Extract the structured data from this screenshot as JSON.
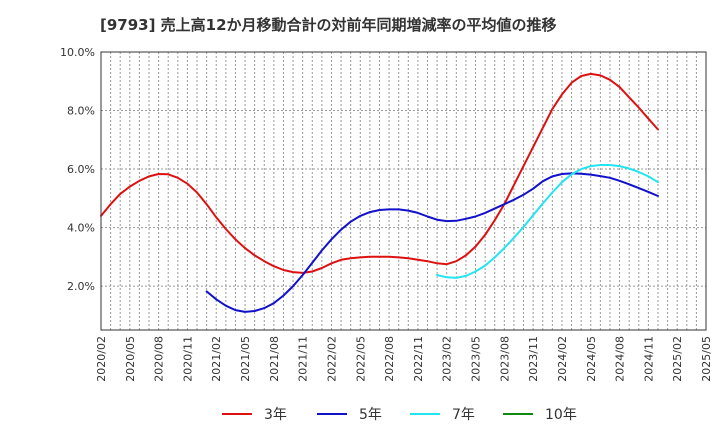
{
  "chart_data": {
    "type": "line",
    "title": "[9793]  売上高12か月移動合計の対前年同期増減率の平均値の推移",
    "xlabel": "",
    "ylabel": "",
    "x_ticks": [
      "2020/02",
      "2020/05",
      "2020/08",
      "2020/11",
      "2021/02",
      "2021/05",
      "2021/08",
      "2021/11",
      "2022/02",
      "2022/05",
      "2022/08",
      "2022/11",
      "2023/02",
      "2023/05",
      "2023/08",
      "2023/11",
      "2024/02",
      "2024/05",
      "2024/08",
      "2024/11",
      "2025/02",
      "2025/05"
    ],
    "y_ticks": [
      "2.0%",
      "4.0%",
      "6.0%",
      "8.0%",
      "10.0%"
    ],
    "y_tick_values": [
      2,
      4,
      6,
      8,
      10
    ],
    "ylim": [
      0.5,
      10
    ],
    "x_range": [
      "2020/02",
      "2025/05"
    ],
    "grid": true,
    "legend_position": "bottom",
    "series": [
      {
        "name": "3年",
        "color": "#dd1111",
        "points": [
          [
            "2020/02",
            4.4
          ],
          [
            "2020/03",
            4.8
          ],
          [
            "2020/04",
            5.15
          ],
          [
            "2020/05",
            5.4
          ],
          [
            "2020/06",
            5.6
          ],
          [
            "2020/07",
            5.75
          ],
          [
            "2020/08",
            5.83
          ],
          [
            "2020/09",
            5.82
          ],
          [
            "2020/10",
            5.7
          ],
          [
            "2020/11",
            5.5
          ],
          [
            "2020/12",
            5.2
          ],
          [
            "2021/01",
            4.8
          ],
          [
            "2021/02",
            4.35
          ],
          [
            "2021/03",
            3.95
          ],
          [
            "2021/04",
            3.6
          ],
          [
            "2021/05",
            3.3
          ],
          [
            "2021/06",
            3.05
          ],
          [
            "2021/07",
            2.85
          ],
          [
            "2021/08",
            2.68
          ],
          [
            "2021/09",
            2.55
          ],
          [
            "2021/10",
            2.48
          ],
          [
            "2021/11",
            2.45
          ],
          [
            "2021/12",
            2.5
          ],
          [
            "2022/01",
            2.62
          ],
          [
            "2022/02",
            2.78
          ],
          [
            "2022/03",
            2.9
          ],
          [
            "2022/04",
            2.95
          ],
          [
            "2022/05",
            2.98
          ],
          [
            "2022/06",
            3.0
          ],
          [
            "2022/07",
            3.0
          ],
          [
            "2022/08",
            3.0
          ],
          [
            "2022/09",
            2.98
          ],
          [
            "2022/10",
            2.95
          ],
          [
            "2022/11",
            2.9
          ],
          [
            "2022/12",
            2.85
          ],
          [
            "2023/01",
            2.78
          ],
          [
            "2023/02",
            2.75
          ],
          [
            "2023/03",
            2.85
          ],
          [
            "2023/04",
            3.05
          ],
          [
            "2023/05",
            3.35
          ],
          [
            "2023/06",
            3.75
          ],
          [
            "2023/07",
            4.25
          ],
          [
            "2023/08",
            4.8
          ],
          [
            "2023/09",
            5.45
          ],
          [
            "2023/10",
            6.1
          ],
          [
            "2023/11",
            6.75
          ],
          [
            "2023/12",
            7.4
          ],
          [
            "2024/01",
            8.05
          ],
          [
            "2024/02",
            8.55
          ],
          [
            "2024/03",
            8.95
          ],
          [
            "2024/04",
            9.18
          ],
          [
            "2024/05",
            9.25
          ],
          [
            "2024/06",
            9.2
          ],
          [
            "2024/07",
            9.05
          ],
          [
            "2024/08",
            8.8
          ],
          [
            "2024/09",
            8.45
          ],
          [
            "2024/10",
            8.1
          ],
          [
            "2024/11",
            7.72
          ],
          [
            "2024/12",
            7.35
          ]
        ]
      },
      {
        "name": "5年",
        "color": "#1111cc",
        "points": [
          [
            "2021/01",
            1.82
          ],
          [
            "2021/02",
            1.55
          ],
          [
            "2021/03",
            1.33
          ],
          [
            "2021/04",
            1.18
          ],
          [
            "2021/05",
            1.12
          ],
          [
            "2021/06",
            1.15
          ],
          [
            "2021/07",
            1.25
          ],
          [
            "2021/08",
            1.42
          ],
          [
            "2021/09",
            1.68
          ],
          [
            "2021/10",
            2.0
          ],
          [
            "2021/11",
            2.38
          ],
          [
            "2021/12",
            2.8
          ],
          [
            "2022/01",
            3.22
          ],
          [
            "2022/02",
            3.6
          ],
          [
            "2022/03",
            3.93
          ],
          [
            "2022/04",
            4.2
          ],
          [
            "2022/05",
            4.4
          ],
          [
            "2022/06",
            4.53
          ],
          [
            "2022/07",
            4.6
          ],
          [
            "2022/08",
            4.62
          ],
          [
            "2022/09",
            4.62
          ],
          [
            "2022/10",
            4.58
          ],
          [
            "2022/11",
            4.5
          ],
          [
            "2022/12",
            4.38
          ],
          [
            "2023/01",
            4.27
          ],
          [
            "2023/02",
            4.22
          ],
          [
            "2023/03",
            4.23
          ],
          [
            "2023/04",
            4.3
          ],
          [
            "2023/05",
            4.38
          ],
          [
            "2023/06",
            4.5
          ],
          [
            "2023/07",
            4.65
          ],
          [
            "2023/08",
            4.8
          ],
          [
            "2023/09",
            4.95
          ],
          [
            "2023/10",
            5.12
          ],
          [
            "2023/11",
            5.33
          ],
          [
            "2023/12",
            5.58
          ],
          [
            "2024/01",
            5.75
          ],
          [
            "2024/02",
            5.83
          ],
          [
            "2024/03",
            5.85
          ],
          [
            "2024/04",
            5.84
          ],
          [
            "2024/05",
            5.81
          ],
          [
            "2024/06",
            5.76
          ],
          [
            "2024/07",
            5.7
          ],
          [
            "2024/08",
            5.6
          ],
          [
            "2024/09",
            5.48
          ],
          [
            "2024/10",
            5.35
          ],
          [
            "2024/11",
            5.22
          ],
          [
            "2024/12",
            5.08
          ]
        ]
      },
      {
        "name": "7年",
        "color": "#22e5f0",
        "points": [
          [
            "2023/01",
            2.38
          ],
          [
            "2023/02",
            2.3
          ],
          [
            "2023/03",
            2.28
          ],
          [
            "2023/04",
            2.35
          ],
          [
            "2023/05",
            2.5
          ],
          [
            "2023/06",
            2.7
          ],
          [
            "2023/07",
            2.98
          ],
          [
            "2023/08",
            3.3
          ],
          [
            "2023/09",
            3.65
          ],
          [
            "2023/10",
            4.02
          ],
          [
            "2023/11",
            4.42
          ],
          [
            "2023/12",
            4.82
          ],
          [
            "2024/01",
            5.2
          ],
          [
            "2024/02",
            5.55
          ],
          [
            "2024/03",
            5.82
          ],
          [
            "2024/04",
            6.0
          ],
          [
            "2024/05",
            6.1
          ],
          [
            "2024/06",
            6.14
          ],
          [
            "2024/07",
            6.14
          ],
          [
            "2024/08",
            6.1
          ],
          [
            "2024/09",
            6.02
          ],
          [
            "2024/10",
            5.9
          ],
          [
            "2024/11",
            5.75
          ],
          [
            "2024/12",
            5.55
          ]
        ]
      },
      {
        "name": "10年",
        "color": "#118811",
        "points": []
      }
    ]
  }
}
